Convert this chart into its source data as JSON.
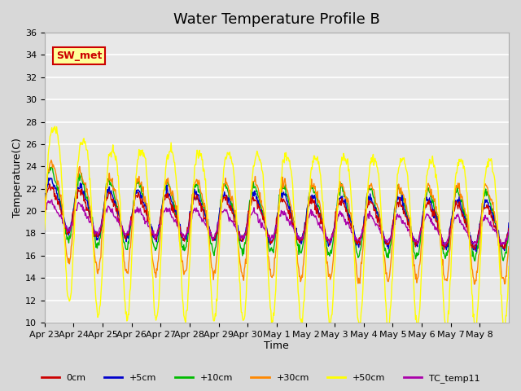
{
  "title": "Water Temperature Profile B",
  "xlabel": "Time",
  "ylabel": "Temperature(C)",
  "ylim": [
    10,
    36
  ],
  "yticks": [
    10,
    12,
    14,
    16,
    18,
    20,
    22,
    24,
    26,
    28,
    30,
    32,
    34,
    36
  ],
  "x_labels": [
    "Apr 23",
    "Apr 24",
    "Apr 25",
    "Apr 26",
    "Apr 27",
    "Apr 28",
    "Apr 29",
    "Apr 30",
    "May 1",
    "May 2",
    "May 3",
    "May 4",
    "May 5",
    "May 6",
    "May 7",
    "May 8"
  ],
  "series_colors": {
    "0cm": "#cc0000",
    "+5cm": "#0000cc",
    "+10cm": "#00bb00",
    "+30cm": "#ff8800",
    "+50cm": "#ffff00",
    "TC_temp11": "#aa00aa"
  },
  "legend_labels": [
    "0cm",
    "+5cm",
    "+10cm",
    "+30cm",
    "+50cm",
    "TC_temp11"
  ],
  "annotation_text": "SW_met",
  "annotation_color": "#cc0000",
  "annotation_bg": "#ffff99",
  "annotation_border": "#cc0000",
  "fig_bg": "#d8d8d8",
  "plot_bg": "#e8e8e8",
  "grid_color": "#ffffff",
  "title_fontsize": 13,
  "axis_label_fontsize": 9,
  "tick_fontsize": 8
}
